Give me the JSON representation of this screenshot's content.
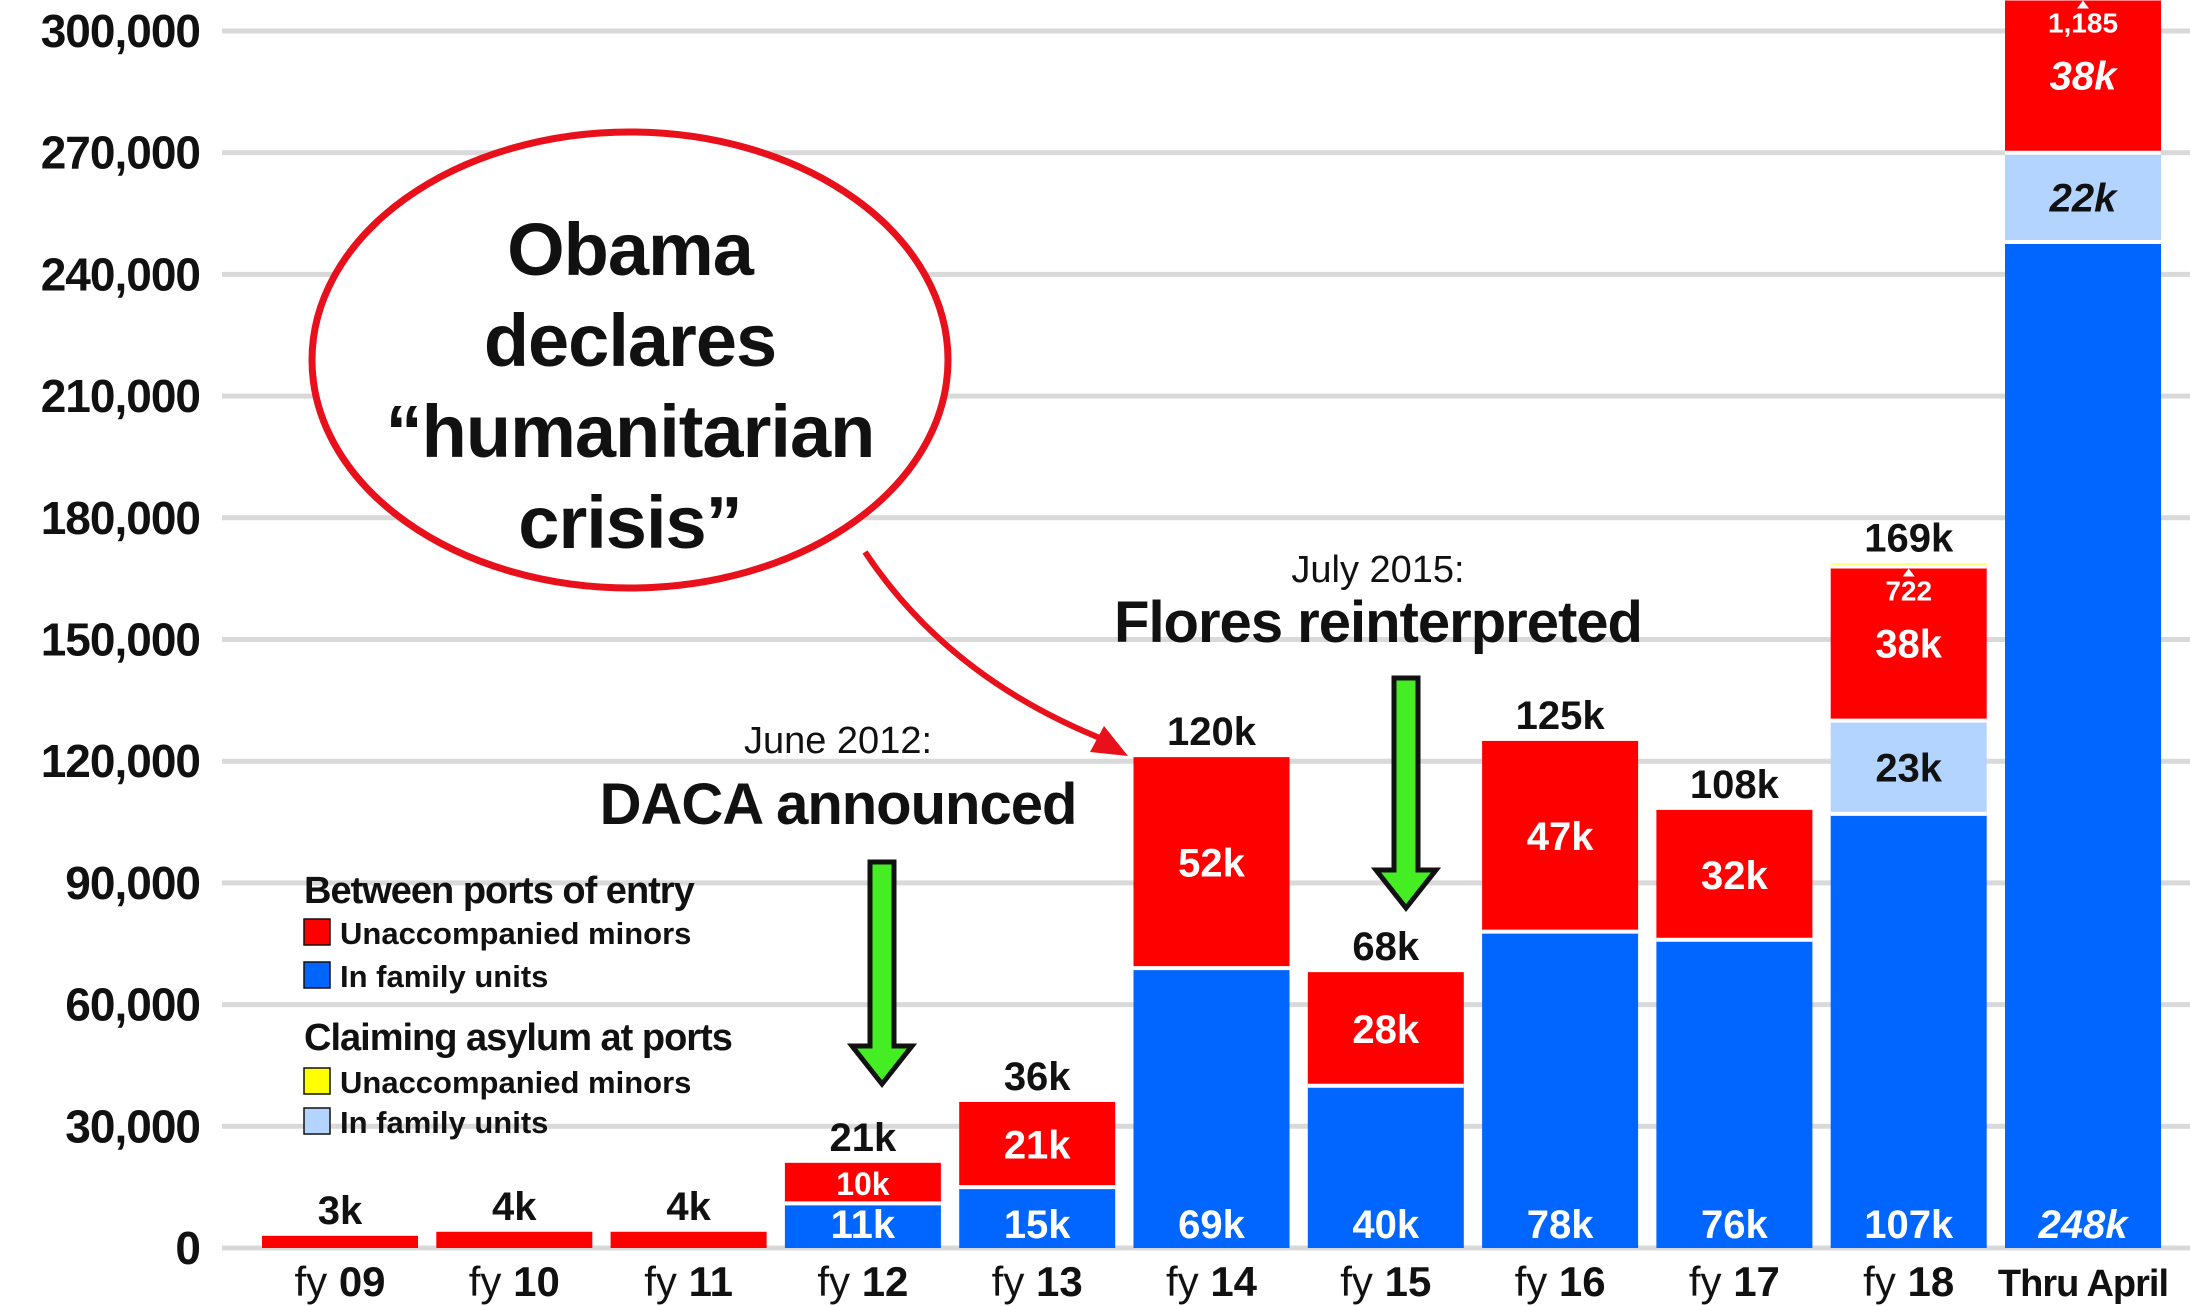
{
  "chart_data": {
    "type": "bar",
    "stacked": true,
    "title": "",
    "xlabel": "",
    "ylabel": "",
    "ylim": [
      0,
      300000
    ],
    "yticks": [
      0,
      30000,
      60000,
      90000,
      120000,
      150000,
      180000,
      210000,
      240000,
      270000,
      300000
    ],
    "ytick_labels": [
      "0",
      "30,000",
      "60,000",
      "90,000",
      "120,000",
      "150,000",
      "180,000",
      "210,000",
      "240,000",
      "270,000",
      "300,000"
    ],
    "grid": true,
    "categories": [
      {
        "prefix": "fy ",
        "num": "09"
      },
      {
        "prefix": "fy ",
        "num": "10"
      },
      {
        "prefix": "fy ",
        "num": "11"
      },
      {
        "prefix": "fy ",
        "num": "12"
      },
      {
        "prefix": "fy ",
        "num": "13"
      },
      {
        "prefix": "fy ",
        "num": "14"
      },
      {
        "prefix": "fy ",
        "num": "15"
      },
      {
        "prefix": "fy ",
        "num": "16"
      },
      {
        "prefix": "fy ",
        "num": "17"
      },
      {
        "prefix": "fy ",
        "num": "18"
      },
      {
        "prefix": "",
        "num": "Thru April"
      }
    ],
    "totals": [
      "3k",
      "4k",
      "4k",
      "21k",
      "36k",
      "120k",
      "68k",
      "125k",
      "108k",
      "169k",
      ""
    ],
    "series": [
      {
        "name": "In family units",
        "group": "Between ports of entry",
        "color": "#0066ff",
        "values": [
          0,
          0,
          0,
          11000,
          15000,
          69000,
          40000,
          78000,
          76000,
          107000,
          248000
        ],
        "labels": [
          "",
          "",
          "",
          "11k",
          "15k",
          "69k",
          "40k",
          "78k",
          "76k",
          "107k",
          "248k"
        ]
      },
      {
        "name": "In family units",
        "group": "Claiming asylum at ports",
        "color": "#b3d4ff",
        "values": [
          0,
          0,
          0,
          0,
          0,
          0,
          0,
          0,
          0,
          23000,
          22000
        ],
        "labels": [
          "",
          "",
          "",
          "",
          "",
          "",
          "",
          "",
          "",
          "23k",
          "22k"
        ]
      },
      {
        "name": "Unaccompanied minors",
        "group": "Between ports of entry",
        "color": "#ff0000",
        "values": [
          3000,
          4000,
          4000,
          10000,
          21000,
          52000,
          28000,
          47000,
          32000,
          38000,
          38000
        ],
        "labels": [
          "",
          "",
          "",
          "10k",
          "21k",
          "52k",
          "28k",
          "47k",
          "32k",
          "38k",
          "38k"
        ]
      },
      {
        "name": "Unaccompanied minors",
        "group": "Claiming asylum at ports",
        "color": "#ffff00",
        "values": [
          0,
          0,
          0,
          0,
          0,
          0,
          0,
          0,
          0,
          722,
          1185
        ],
        "labels": [
          "",
          "",
          "",
          "",
          "",
          "",
          "",
          "",
          "",
          "722",
          "1,185"
        ]
      }
    ],
    "annotations": {
      "bubble": [
        "Obama",
        "declares",
        "“humanitarian",
        "crisis”"
      ],
      "daca_date": "June 2012:",
      "daca_title": "DACA announced",
      "flores_date": "July 2015:",
      "flores_title": "Flores reinterpreted"
    },
    "legend": {
      "placement": "left",
      "groups": [
        {
          "title": "Between ports of entry",
          "items": [
            {
              "label": "Unaccompanied minors",
              "color": "#ff0000"
            },
            {
              "label": "In family units",
              "color": "#0066ff"
            }
          ]
        },
        {
          "title": "Claiming asylum at ports",
          "items": [
            {
              "label": "Unaccompanied minors",
              "color": "#ffff00"
            },
            {
              "label": "In family units",
              "color": "#b3d4ff"
            }
          ]
        }
      ]
    },
    "colors": {
      "grid": "#d9d9d9",
      "bubble_outline": "#e8101a",
      "arrow_green": "#44ee22"
    }
  }
}
